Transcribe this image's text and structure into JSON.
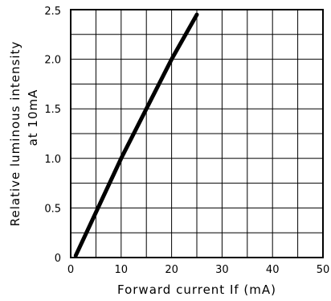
{
  "chart_data": {
    "type": "line",
    "xlabel": "Forward current If (mA)",
    "ylabel_line1": "Relative luminous intensity",
    "ylabel_line2": "at 10mA",
    "xlim": [
      0,
      50
    ],
    "ylim": [
      0,
      2.5
    ],
    "x_ticks": [
      0,
      10,
      20,
      30,
      40,
      50
    ],
    "y_ticks": [
      0,
      0.5,
      1.0,
      1.5,
      2.0,
      2.5
    ],
    "x_tick_labels": [
      "0",
      "10",
      "20",
      "30",
      "40",
      "50"
    ],
    "y_tick_labels": [
      "0",
      "0.5",
      "1.0",
      "1.5",
      "2.0",
      "2.5"
    ],
    "x_grid_step": 5,
    "y_grid_step": 0.25,
    "grid": true,
    "series": [
      {
        "x": [
          1,
          10,
          20,
          25
        ],
        "y": [
          0.02,
          1.0,
          2.0,
          2.45
        ],
        "color": "#000000"
      }
    ]
  }
}
